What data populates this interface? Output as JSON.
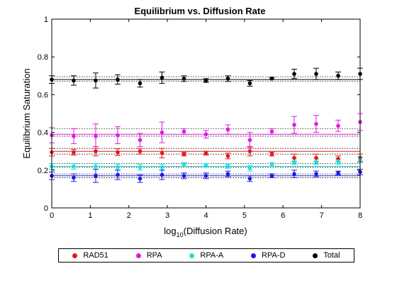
{
  "chart_data": {
    "type": "scatter",
    "title": "Equilibrium vs. Diffusion Rate",
    "xlabel_base": "log",
    "xlabel_sub": "10",
    "xlabel_rest": "(Diffusion Rate)",
    "ylabel": "Equilibrium Saturation",
    "xlim": [
      0,
      8
    ],
    "ylim": [
      0,
      1
    ],
    "xticks": [
      "0",
      "1",
      "2",
      "3",
      "4",
      "5",
      "6",
      "7",
      "8"
    ],
    "yticks": [
      "0",
      "0.2",
      "0.4",
      "0.6",
      "0.8",
      "1"
    ],
    "grid": false,
    "legend_position": "bottom-outside",
    "x": [
      0,
      0.57,
      1.14,
      1.71,
      2.29,
      2.86,
      3.43,
      4,
      4.57,
      5.14,
      5.71,
      6.29,
      6.86,
      7.43,
      8
    ],
    "series": [
      {
        "name": "RAD51",
        "color": "#e01b1b",
        "fit": 0.3,
        "band": [
          0.285,
          0.315
        ],
        "values": [
          0.295,
          0.295,
          0.3,
          0.295,
          0.3,
          0.29,
          0.285,
          0.29,
          0.275,
          0.3,
          0.285,
          0.265,
          0.265,
          0.26,
          0.265
        ],
        "errors": [
          0.02,
          0.015,
          0.025,
          0.018,
          0.015,
          0.025,
          0.01,
          0.01,
          0.015,
          0.025,
          0.01,
          0.02,
          0.02,
          0.015,
          0.02
        ]
      },
      {
        "name": "RPA",
        "color": "#e01be0",
        "fit": 0.39,
        "band": [
          0.38,
          0.42
        ],
        "values": [
          0.385,
          0.38,
          0.38,
          0.385,
          0.36,
          0.4,
          0.405,
          0.39,
          0.415,
          0.36,
          0.405,
          0.44,
          0.445,
          0.435,
          0.455
        ],
        "errors": [
          0.04,
          0.04,
          0.065,
          0.045,
          0.035,
          0.055,
          0.015,
          0.02,
          0.025,
          0.04,
          0.015,
          0.045,
          0.045,
          0.03,
          0.045
        ]
      },
      {
        "name": "RPA-A",
        "color": "#1be0e0",
        "fit": 0.22,
        "band": [
          0.215,
          0.235
        ],
        "values": [
          0.22,
          0.22,
          0.22,
          0.215,
          0.215,
          0.215,
          0.23,
          0.225,
          0.22,
          0.21,
          0.23,
          0.245,
          0.245,
          0.245,
          0.255
        ],
        "errors": [
          0.015,
          0.015,
          0.015,
          0.015,
          0.015,
          0.015,
          0.01,
          0.01,
          0.01,
          0.015,
          0.01,
          0.015,
          0.015,
          0.015,
          0.015
        ]
      },
      {
        "name": "RPA-D",
        "color": "#1b1be0",
        "fit": 0.17,
        "band": [
          0.16,
          0.18
        ],
        "values": [
          0.17,
          0.16,
          0.17,
          0.175,
          0.155,
          0.175,
          0.17,
          0.17,
          0.18,
          0.155,
          0.17,
          0.18,
          0.18,
          0.185,
          0.19
        ],
        "errors": [
          0.02,
          0.02,
          0.035,
          0.025,
          0.02,
          0.025,
          0.015,
          0.015,
          0.015,
          0.015,
          0.01,
          0.02,
          0.015,
          0.01,
          0.015
        ]
      },
      {
        "name": "Total",
        "color": "#000000",
        "fit": 0.68,
        "band": [
          0.67,
          0.695
        ],
        "values": [
          0.68,
          0.675,
          0.675,
          0.68,
          0.66,
          0.69,
          0.685,
          0.675,
          0.685,
          0.66,
          0.685,
          0.71,
          0.71,
          0.7,
          0.71
        ],
        "errors": [
          0.02,
          0.025,
          0.04,
          0.025,
          0.02,
          0.03,
          0.015,
          0.01,
          0.015,
          0.015,
          0.005,
          0.025,
          0.03,
          0.02,
          0.03
        ]
      }
    ]
  }
}
